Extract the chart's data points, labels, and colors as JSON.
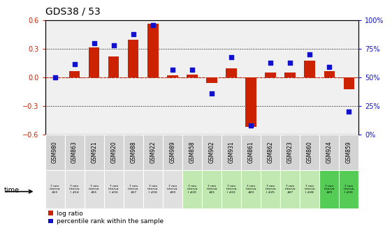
{
  "title": "GDS38 / 53",
  "samples": [
    "GSM980",
    "GSM863",
    "GSM921",
    "GSM920",
    "GSM988",
    "GSM922",
    "GSM989",
    "GSM858",
    "GSM902",
    "GSM931",
    "GSM861",
    "GSM862",
    "GSM923",
    "GSM860",
    "GSM924",
    "GSM859"
  ],
  "log_ratio": [
    0.0,
    0.07,
    0.32,
    0.22,
    0.4,
    0.57,
    0.02,
    0.03,
    -0.06,
    0.1,
    -0.52,
    0.05,
    0.05,
    0.18,
    0.07,
    -0.12
  ],
  "percentile": [
    50,
    62,
    80,
    78,
    88,
    96,
    57,
    57,
    36,
    68,
    8,
    63,
    63,
    70,
    59,
    20
  ],
  "ylim_left": [
    -0.6,
    0.6
  ],
  "ylim_right": [
    0,
    100
  ],
  "yticks_left": [
    -0.6,
    -0.3,
    0.0,
    0.3,
    0.6
  ],
  "yticks_right": [
    0,
    25,
    50,
    75,
    100
  ],
  "bar_color": "#cc2200",
  "dot_color": "#1111cc",
  "zero_line_color": "#cc2200",
  "bg_color": "#f0f0f0",
  "sample_bg": "#d4d4d4",
  "legend_items": [
    "log ratio",
    "percentile rank within the sample"
  ],
  "time_bg": [
    "#e0e0e0",
    "#e0e0e0",
    "#e0e0e0",
    "#e0e0e0",
    "#e0e0e0",
    "#e0e0e0",
    "#e0e0e0",
    "#c0e8b0",
    "#c0e8b0",
    "#c0e8b0",
    "#c0e8b0",
    "#c0e8b0",
    "#c0e8b0",
    "#c0e8b0",
    "#55cc55",
    "#55cc55"
  ],
  "time_texts": [
    "7 min\ninterva\n#13",
    "7 min\ninterva\nl #14",
    "7 min\ninterva\n#15",
    "7 min\ninterva\nl #16",
    "7 min\ninterva\n#17",
    "7 min\ninterva\nl #18",
    "7 min\ninterva\n#19",
    "7 min\ninterva\nl #20",
    "7 min\ninterva\n#21",
    "7 min\ninterva\nl #22",
    "7 min\ninterva\n#23",
    "7 min\ninterva\nl #25",
    "7 min\ninterva\n#27",
    "7 min\ninterva\nl #28",
    "7 min\ninterva\n#29",
    "7 min\ninterva\nl #30"
  ]
}
